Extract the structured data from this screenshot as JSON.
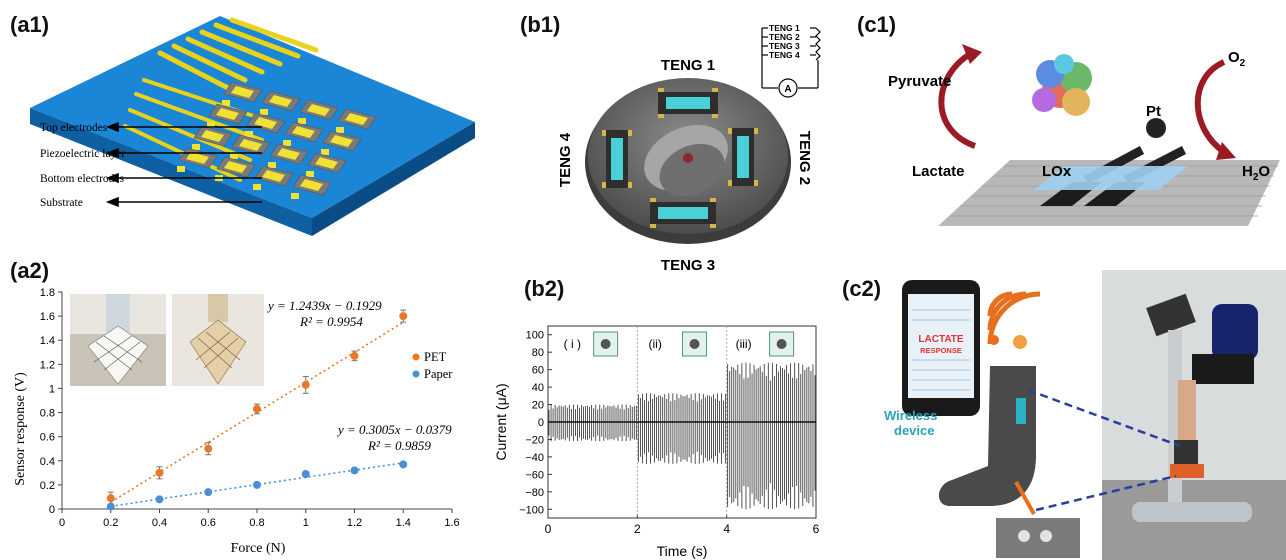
{
  "labels": {
    "a1": "(a1)",
    "a2": "(a2)",
    "b1": "(b1)",
    "b2": "(b2)",
    "c1": "(c1)",
    "c2": "(c2)"
  },
  "a1": {
    "callouts": [
      "Top electrodes",
      "Piezoelectric layer",
      "Bottom electrodes",
      "Substrate"
    ]
  },
  "b1": {
    "teng1": "TENG 1",
    "teng2": "TENG 2",
    "teng3": "TENG 3",
    "teng4": "TENG 4",
    "circuit_labels": [
      "TENG 1",
      "TENG 2",
      "TENG 3",
      "TENG 4"
    ],
    "meter": "A"
  },
  "c1": {
    "pyruvate": "Pyruvate",
    "lactate": "Lactate",
    "lox": "LOx",
    "pt": "Pt",
    "o2": "O",
    "o2_sub": "2",
    "h2o": "H",
    "h2o_sub": "2",
    "h2o_tail": "O"
  },
  "c2": {
    "screen_line1": "LACTATE",
    "screen_line2": "RESPONSE",
    "device_line1": "Wireless",
    "device_line2": "device"
  },
  "chart_data": [
    {
      "id": "a2",
      "type": "scatter",
      "xlabel": "Force (N)",
      "ylabel": "Sensor response (V)",
      "xlim": [
        0,
        1.6
      ],
      "ylim": [
        0,
        1.8
      ],
      "xticks": [
        "0",
        "0.2",
        "0.4",
        "0.6",
        "0.8",
        "1",
        "1.2",
        "1.4",
        "1.6"
      ],
      "yticks": [
        "0",
        "0.2",
        "0.4",
        "0.6",
        "0.8",
        "1",
        "1.2",
        "1.4",
        "1.6",
        "1.8"
      ],
      "grid": false,
      "legend": "right",
      "series": [
        {
          "name": "PET",
          "color": "#e8782a",
          "x": [
            0.2,
            0.4,
            0.6,
            0.8,
            1.0,
            1.2,
            1.4
          ],
          "y": [
            0.09,
            0.3,
            0.5,
            0.83,
            1.03,
            1.27,
            1.6
          ],
          "err": [
            0.05,
            0.05,
            0.05,
            0.04,
            0.07,
            0.04,
            0.05
          ],
          "fit": {
            "slope": 1.2439,
            "intercept": -0.1929
          },
          "equation": "y = 1.2439x − 0.1929",
          "r2": "R² = 0.9954"
        },
        {
          "name": "Paper",
          "color": "#4a90d9",
          "x": [
            0.2,
            0.4,
            0.6,
            0.8,
            1.0,
            1.2,
            1.4
          ],
          "y": [
            0.02,
            0.08,
            0.14,
            0.2,
            0.29,
            0.32,
            0.37
          ],
          "err": [
            0.0,
            0.0,
            0.0,
            0.0,
            0.02,
            0.0,
            0.0
          ],
          "fit": {
            "slope": 0.3005,
            "intercept": -0.0379
          },
          "equation": "y = 0.3005x − 0.0379",
          "r2": "R² = 0.9859"
        }
      ]
    },
    {
      "id": "b2",
      "type": "line",
      "xlabel": "Time (s)",
      "ylabel": "Current (μA)",
      "xlim": [
        0,
        6
      ],
      "ylim": [
        -110,
        110
      ],
      "xticks": [
        "0",
        "2",
        "4",
        "6"
      ],
      "yticks": [
        "100",
        "80",
        "60",
        "40",
        "20",
        "0",
        "−20",
        "−40",
        "−60",
        "−80",
        "−100"
      ],
      "regions": [
        "( i )",
        "(ii)",
        "(iii)"
      ],
      "envelope": [
        {
          "t0": 0,
          "t1": 2,
          "max": 20,
          "min": -22
        },
        {
          "t0": 2,
          "t1": 4,
          "max": 33,
          "min": -48
        },
        {
          "t0": 4,
          "t1": 6,
          "max": 68,
          "min": -100
        }
      ]
    }
  ]
}
